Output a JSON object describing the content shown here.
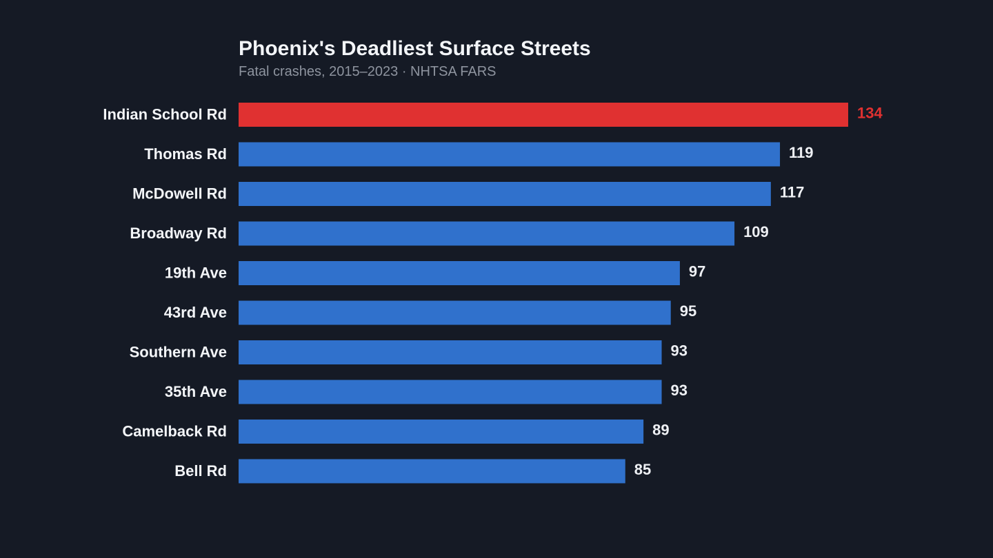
{
  "chart_data": {
    "type": "bar",
    "orientation": "horizontal",
    "title": "Phoenix's Deadliest Surface Streets",
    "subtitle": "Fatal crashes, 2015–2023 · NHTSA FARS",
    "categories": [
      "Indian School Rd",
      "Thomas Rd",
      "McDowell Rd",
      "Broadway Rd",
      "19th Ave",
      "43rd Ave",
      "Southern Ave",
      "35th Ave",
      "Camelback Rd",
      "Bell Rd"
    ],
    "values": [
      134,
      119,
      117,
      109,
      97,
      95,
      93,
      93,
      89,
      85
    ],
    "xlim": [
      0,
      134
    ],
    "grid": false,
    "highlight_index": 0,
    "colors": {
      "highlight": "#e03131",
      "default": "#3071cc",
      "label": "#f3f5f8",
      "value_label": "#eef0f4",
      "background": "#151a25",
      "subtitle": "#8e949f"
    }
  }
}
